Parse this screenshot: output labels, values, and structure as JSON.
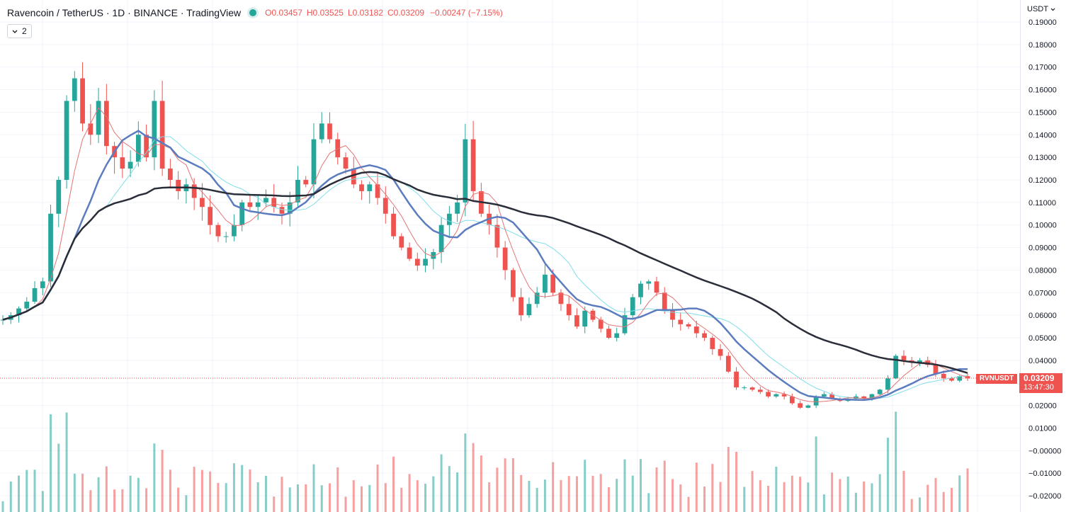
{
  "header": {
    "title": "Ravencoin / TetherUS · 1D · BINANCE · TradingView",
    "open": "O0.03457",
    "high": "H0.03525",
    "low": "L0.03182",
    "close": "C0.03209",
    "change": "−0.00247 (−7.15%)",
    "indicators_toggle_label": "2"
  },
  "price_axis": {
    "currency": "USDT",
    "ticks": [
      "0.19000",
      "0.18000",
      "0.17000",
      "0.16000",
      "0.15000",
      "0.14000",
      "0.13000",
      "0.12000",
      "0.11000",
      "0.10000",
      "0.09000",
      "0.08000",
      "0.07000",
      "0.06000",
      "0.05000",
      "0.04000",
      "0.03000",
      "0.02000",
      "0.01000",
      "−0.00000",
      "−0.01000",
      "−0.02000"
    ]
  },
  "last_price": {
    "symbol": "RVNUSDT",
    "value": "0.03209",
    "countdown": "13:47:30"
  },
  "colors": {
    "up": "#26a69a",
    "down": "#ef5350",
    "ma_slow": "#2a2e39",
    "ma_mid": "#5b7cbf",
    "ma_fast": "#e57373",
    "ma_light": "#80deea",
    "grid": "#f0f3fa"
  },
  "chart_data": {
    "type": "candlestick",
    "title": "Ravencoin / TetherUS · 1D · BINANCE",
    "ylim": [
      -0.025,
      0.19
    ],
    "close_series_approx": [
      0.058,
      0.06,
      0.063,
      0.066,
      0.072,
      0.075,
      0.105,
      0.12,
      0.155,
      0.165,
      0.145,
      0.14,
      0.155,
      0.135,
      0.13,
      0.125,
      0.128,
      0.14,
      0.13,
      0.155,
      0.125,
      0.12,
      0.115,
      0.118,
      0.112,
      0.108,
      0.1,
      0.095,
      0.095,
      0.1,
      0.11,
      0.108,
      0.11,
      0.112,
      0.108,
      0.105,
      0.11,
      0.12,
      0.118,
      0.138,
      0.145,
      0.138,
      0.13,
      0.125,
      0.118,
      0.115,
      0.118,
      0.112,
      0.105,
      0.095,
      0.09,
      0.085,
      0.082,
      0.085,
      0.088,
      0.1,
      0.105,
      0.11,
      0.138,
      0.115,
      0.105,
      0.1,
      0.09,
      0.08,
      0.068,
      0.06,
      0.065,
      0.07,
      0.078,
      0.07,
      0.065,
      0.06,
      0.055,
      0.062,
      0.058,
      0.054,
      0.05,
      0.052,
      0.06,
      0.068,
      0.074,
      0.075,
      0.07,
      0.062,
      0.058,
      0.056,
      0.055,
      0.052,
      0.05,
      0.045,
      0.042,
      0.035,
      0.028,
      0.028,
      0.027,
      0.026,
      0.024,
      0.025,
      0.024,
      0.021,
      0.019,
      0.02,
      0.024,
      0.025,
      0.023,
      0.022,
      0.023,
      0.024,
      0.023,
      0.025,
      0.027,
      0.032,
      0.042,
      0.04,
      0.039,
      0.04,
      0.038,
      0.034,
      0.032,
      0.031,
      0.033,
      0.032
    ]
  }
}
